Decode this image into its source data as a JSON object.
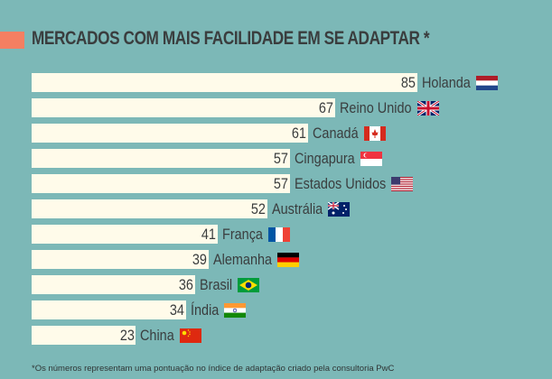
{
  "chart_data": {
    "type": "bar",
    "orientation": "horizontal",
    "title": "MERCADOS COM MAIS FACILIDADE EM SE ADAPTAR *",
    "categories": [
      "Holanda",
      "Reino Unido",
      "Canadá",
      "Cingapura",
      "Estados Unidos",
      "Austrália",
      "França",
      "Alemanha",
      "Brasil",
      "Índia",
      "China"
    ],
    "values": [
      85,
      67,
      61,
      57,
      57,
      52,
      41,
      39,
      36,
      34,
      23
    ],
    "flags": [
      "nl-flag-icon",
      "uk-flag-icon",
      "ca-flag-icon",
      "sg-flag-icon",
      "us-flag-icon",
      "au-flag-icon",
      "fr-flag-icon",
      "de-flag-icon",
      "br-flag-icon",
      "in-flag-icon",
      "cn-flag-icon"
    ],
    "xlim": [
      0,
      100
    ],
    "grid": false,
    "data_labels": true,
    "colors": {
      "background": "#7cb8b7",
      "bar": "#fffbea",
      "accent": "#f47f62",
      "text": "#3a3d3e"
    }
  },
  "footnote": "*Os números representam uma pontuação no índice de adaptação criado pela consultoria PwC"
}
